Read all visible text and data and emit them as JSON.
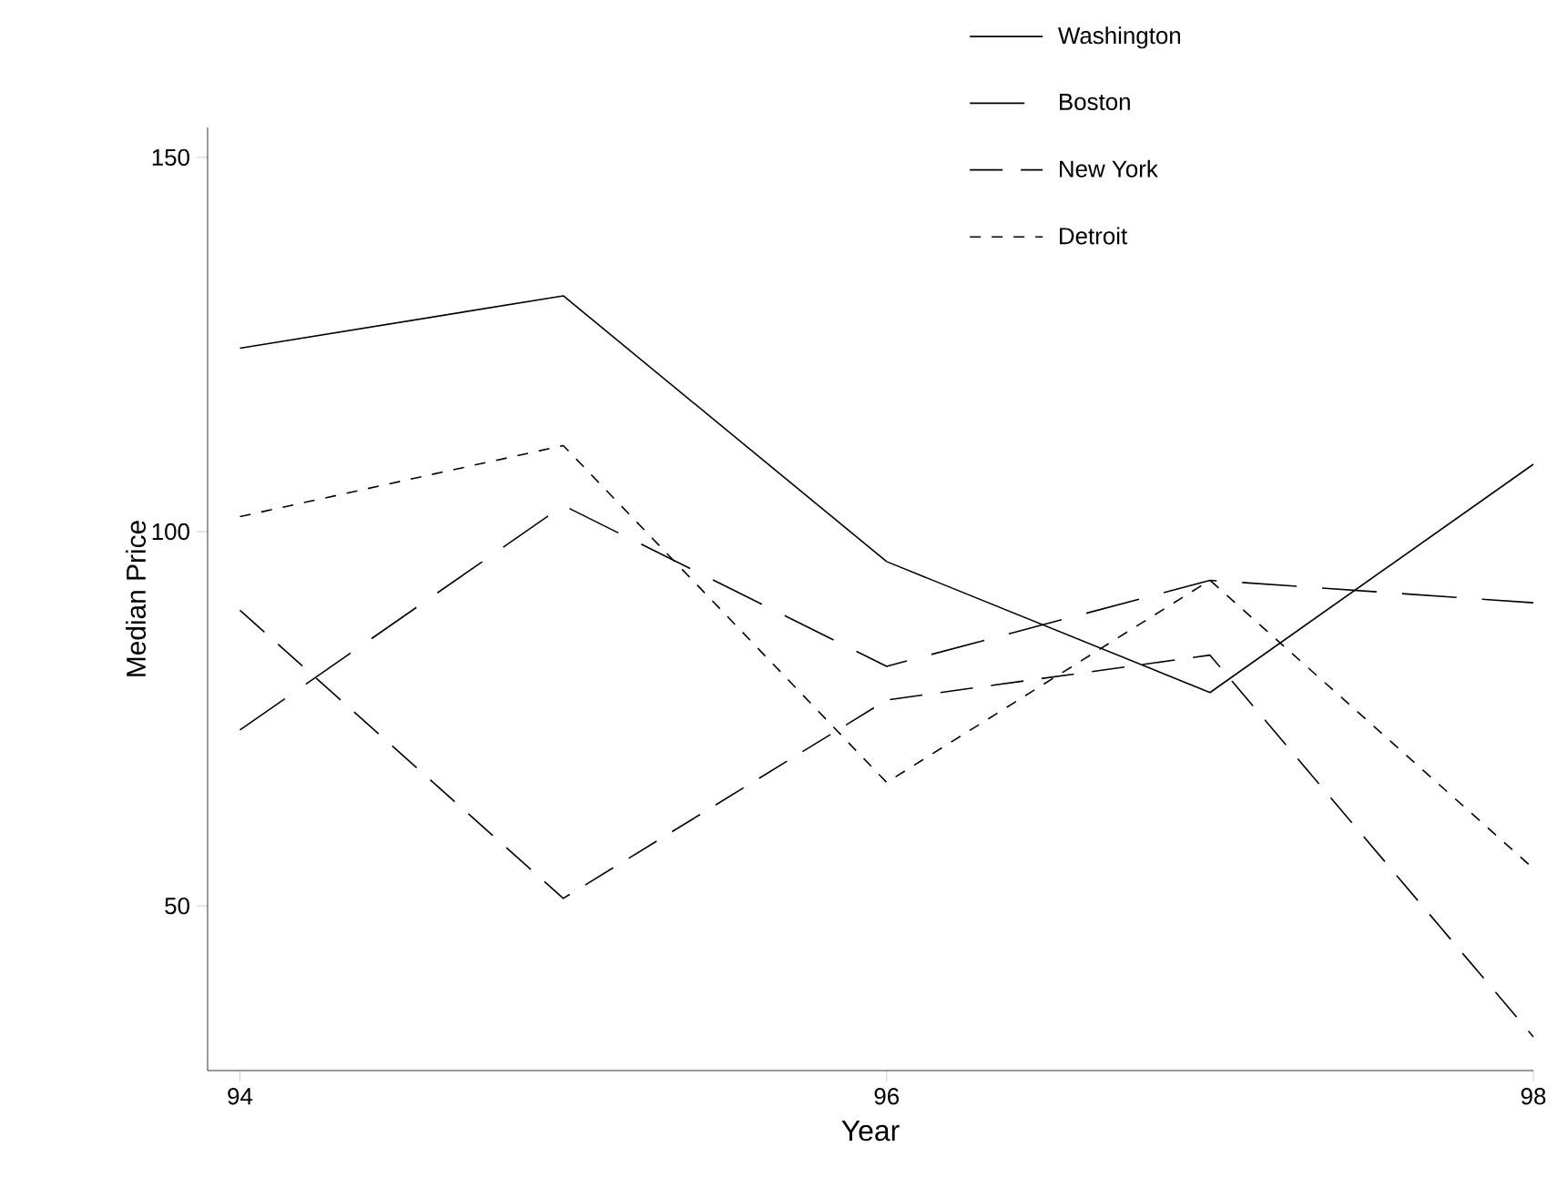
{
  "chart_data": {
    "type": "line",
    "xlabel": "Year",
    "ylabel": "Median Price",
    "x": [
      94,
      95,
      96,
      97,
      98
    ],
    "series": [
      {
        "name": "Washington",
        "color": "#000000",
        "line_style": "solid",
        "values": [
          124.5,
          131.5,
          96,
          78.5,
          109
        ]
      },
      {
        "name": "Boston",
        "color": "#000000",
        "line_style": "dashed",
        "values": [
          73.5,
          103.5,
          82,
          93.5,
          90.5
        ]
      },
      {
        "name": "New York",
        "color": "#000000",
        "line_style": "dashed",
        "values": [
          89.5,
          51,
          77.5,
          83.5,
          32.5
        ]
      },
      {
        "name": "Detroit",
        "color": "#000000",
        "line_style": "dotted",
        "values": [
          102,
          111.5,
          66.5,
          93.5,
          55
        ]
      }
    ],
    "xlim": [
      93.9,
      98
    ],
    "ylim": [
      28,
      154
    ],
    "xticks": [
      94,
      96,
      98
    ],
    "yticks": [
      50,
      100,
      150
    ],
    "grid": false,
    "legend": "top right",
    "marker": "none"
  }
}
